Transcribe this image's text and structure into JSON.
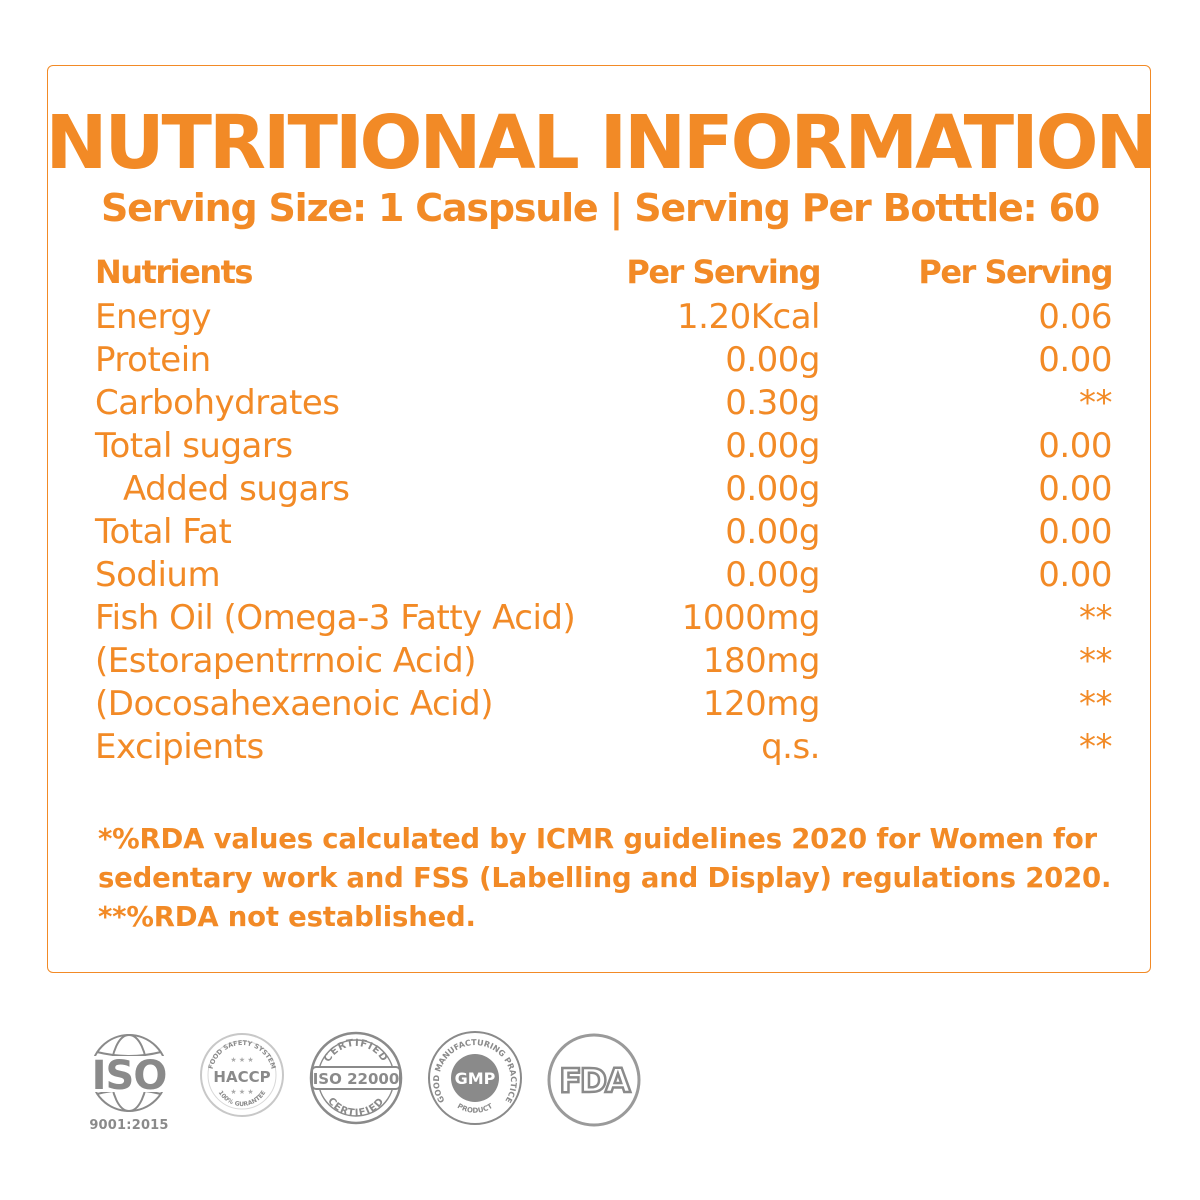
{
  "colors": {
    "accent": "#f28a26",
    "badge_gray": "#8a8a8a"
  },
  "title": "NUTRITIONAL INFORMATION",
  "subtitle": "Serving Size: 1 Caspsule | Serving Per Botttle: 60",
  "table": {
    "headers": [
      "Nutrients",
      "Per Serving",
      "Per Serving"
    ],
    "rows": [
      {
        "name": "Energy",
        "per_serving": "1.20Kcal",
        "rda": "0.06"
      },
      {
        "name": "Protein",
        "per_serving": "0.00g",
        "rda": "0.00"
      },
      {
        "name": "Carbohydrates",
        "per_serving": "0.30g",
        "rda": "**"
      },
      {
        "name": "Total sugars",
        "per_serving": "0.00g",
        "rda": "0.00"
      },
      {
        "name": "Added sugars",
        "per_serving": "0.00g",
        "rda": "0.00"
      },
      {
        "name": "Total Fat",
        "per_serving": "0.00g",
        "rda": "0.00"
      },
      {
        "name": "Sodium",
        "per_serving": "0.00g",
        "rda": "0.00"
      },
      {
        "name": "Fish Oil (Omega-3 Fatty Acid)",
        "per_serving": "1000mg",
        "rda": "**"
      },
      {
        "name": "(Estorapentrrnoic Acid)",
        "per_serving": "180mg",
        "rda": "**"
      },
      {
        "name": "(Docosahexaenoic Acid)",
        "per_serving": "120mg",
        "rda": "**"
      },
      {
        "name": "Excipients",
        "per_serving": "q.s.",
        "rda": "**"
      }
    ]
  },
  "notes": [
    "*%RDA values calculated by ICMR guidelines 2020 for Women for",
    "sedentary work and FSS (Labelling and Display) regulations 2020.",
    "**%RDA not established."
  ],
  "certifications": {
    "iso": {
      "text": "ISO",
      "caption": "9001:2015",
      "icon": "iso-globe-icon"
    },
    "haccp": {
      "text": "HACCP",
      "top_arc": "FOOD SAFETY SYSTEM",
      "bottom_arc": "100% GURANTEE",
      "icon": "haccp-badge-icon"
    },
    "iso22000": {
      "text": "ISO 22000",
      "top_arc": "CERTIFIED",
      "bottom_arc": "CERTIFIED",
      "icon": "iso-22000-badge-icon"
    },
    "gmp": {
      "text": "GMP",
      "arc": "GOOD MANUFACTURING PRACTICE",
      "bottom_arc": "PRODUCT",
      "icon": "gmp-badge-icon"
    },
    "fda": {
      "text": "FDA",
      "icon": "fda-badge-icon"
    }
  }
}
